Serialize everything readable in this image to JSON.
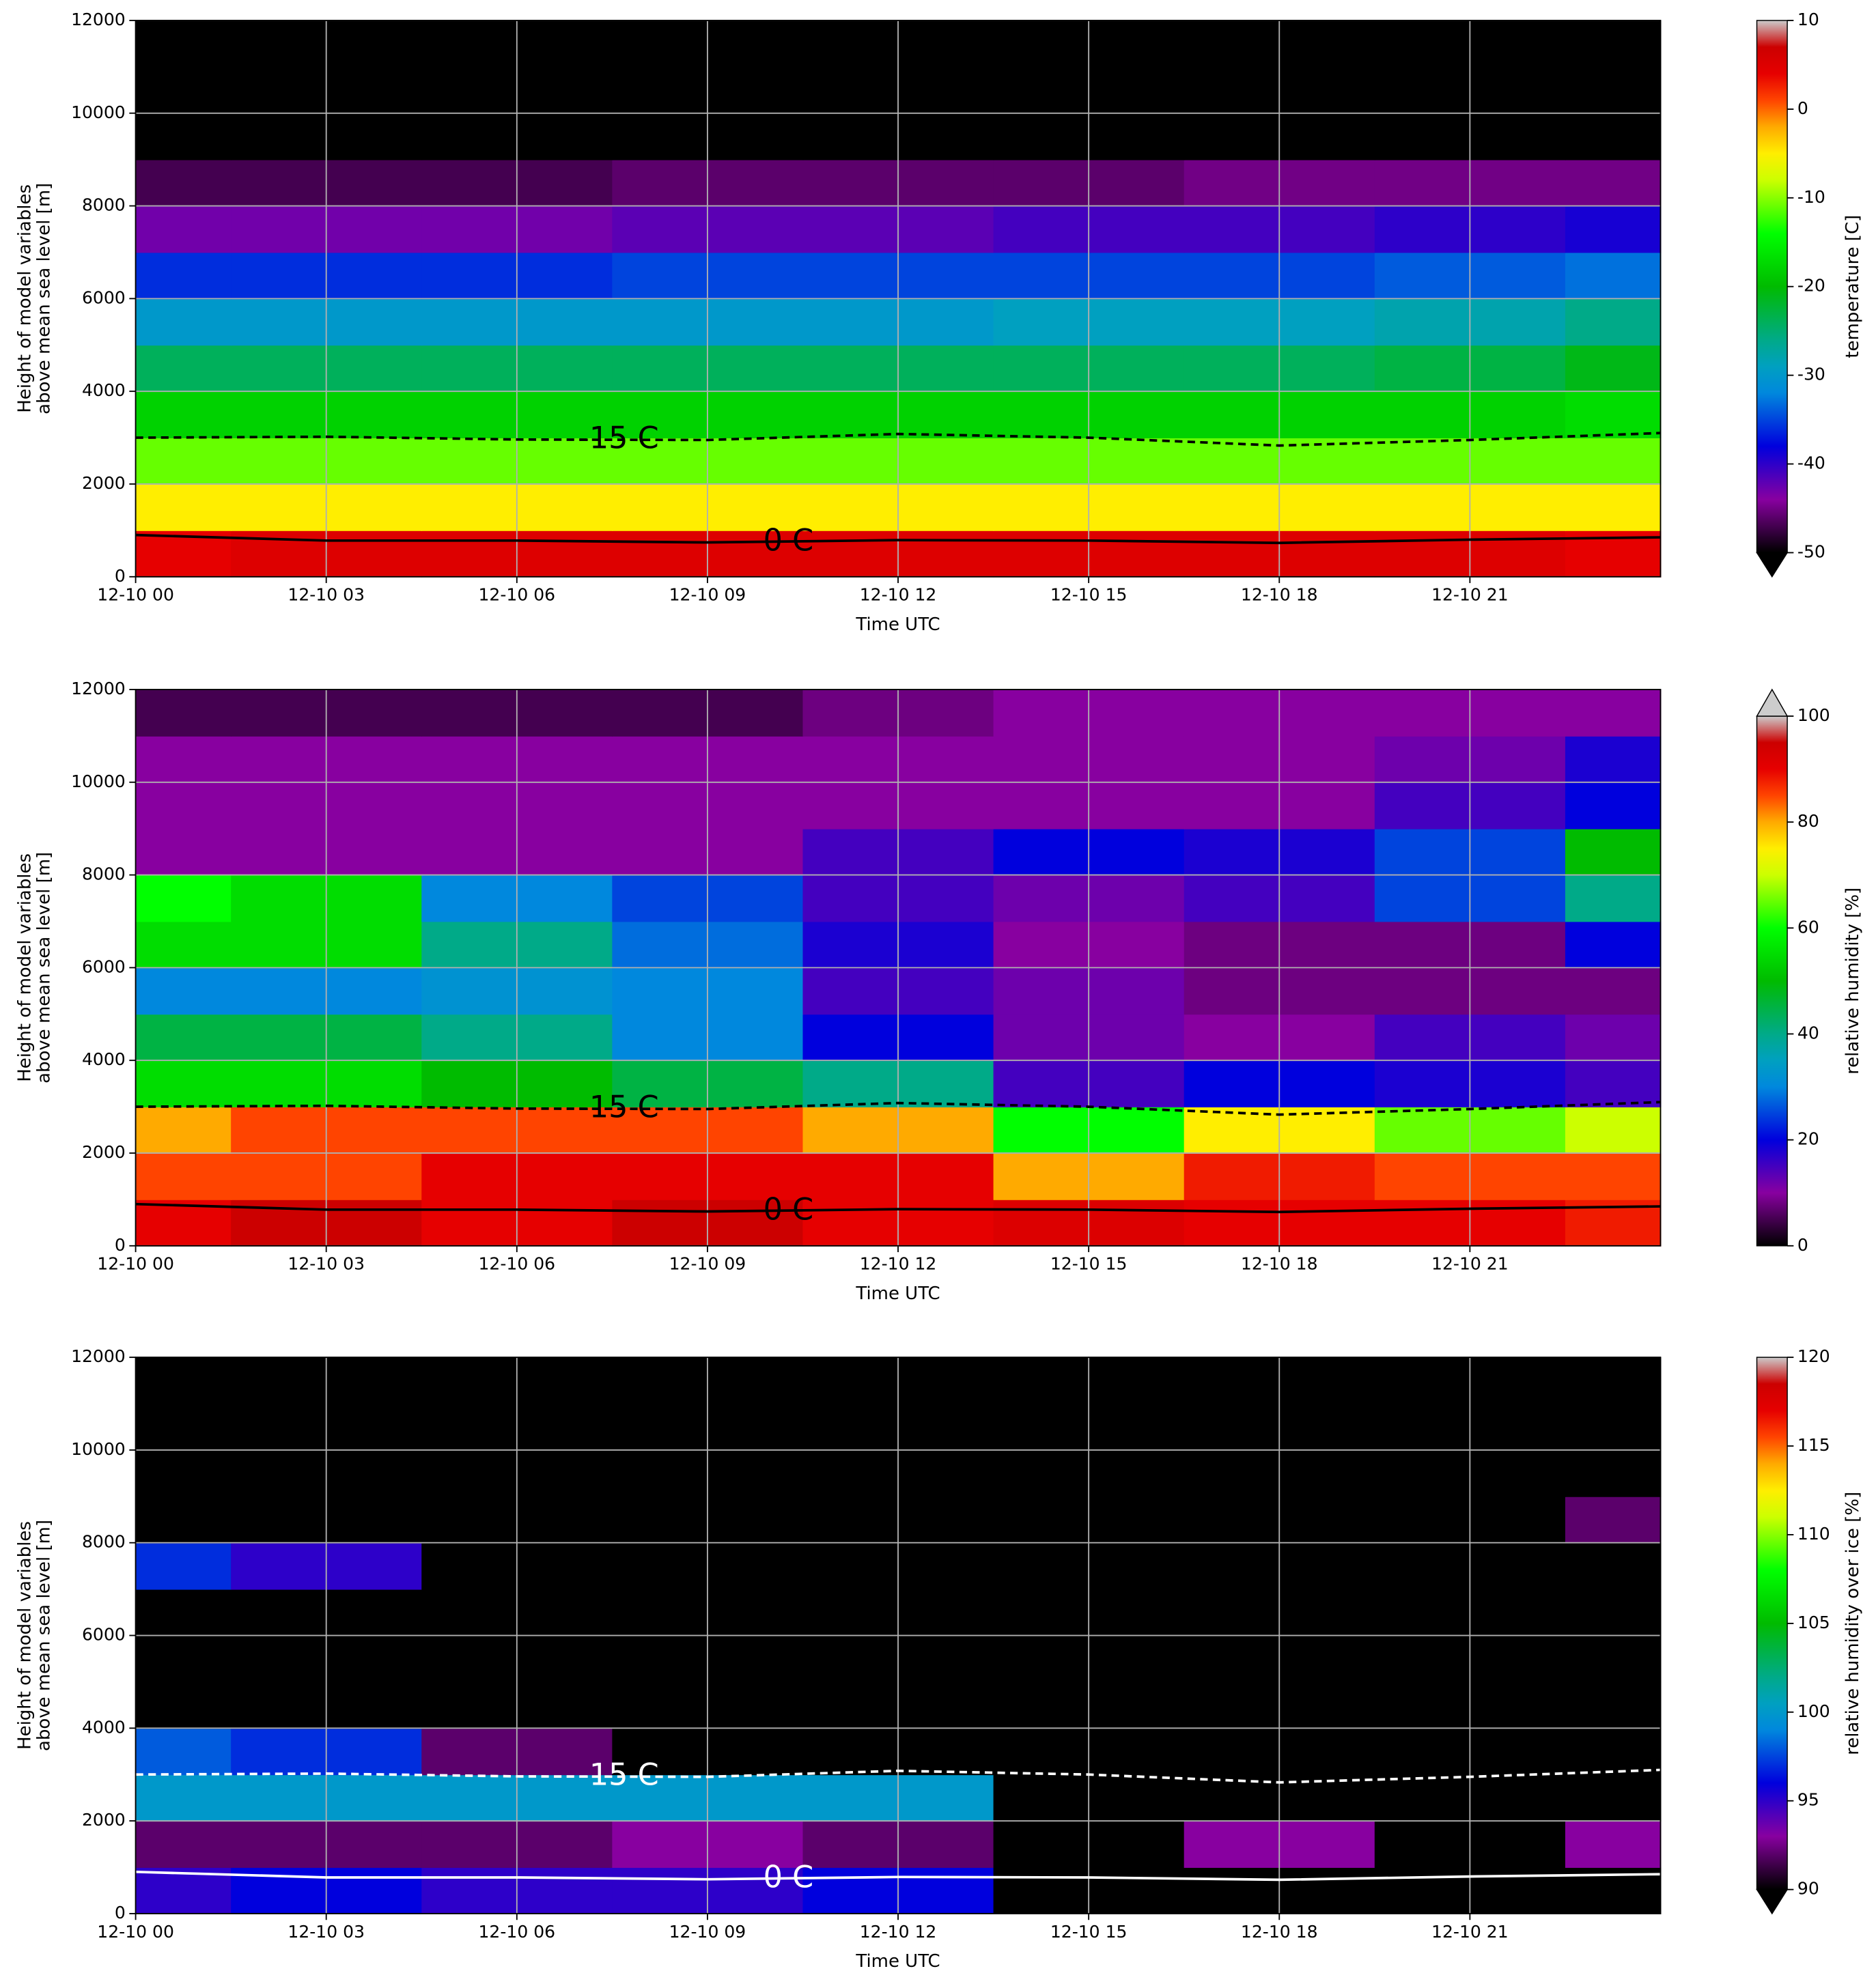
{
  "chart_data": [
    {
      "type": "heatmap",
      "colormap": "nipy_spectral",
      "grid": true,
      "x": [
        0,
        3,
        6,
        9,
        12,
        15,
        18,
        21,
        24
      ],
      "y": [
        500,
        1500,
        2500,
        3500,
        4500,
        5500,
        6500,
        7500,
        8500,
        9500,
        10500,
        11500
      ],
      "z": [
        [
          4,
          5,
          5,
          5,
          5,
          5,
          5,
          5,
          4
        ],
        [
          -5,
          -5,
          -5,
          -5,
          -5,
          -5,
          -5,
          -5,
          -5
        ],
        [
          -11,
          -11,
          -11,
          -11,
          -11,
          -11,
          -11,
          -11,
          -11
        ],
        [
          -18,
          -18,
          -18,
          -18,
          -18,
          -18,
          -18,
          -18,
          -17
        ],
        [
          -24,
          -24,
          -24,
          -24,
          -24,
          -24,
          -24,
          -23,
          -21
        ],
        [
          -30,
          -30,
          -30,
          -30,
          -30,
          -29,
          -29,
          -28,
          -26
        ],
        [
          -36,
          -36,
          -36,
          -35,
          -35,
          -35,
          -35,
          -34,
          -33
        ],
        [
          -43,
          -43,
          -43,
          -42,
          -42,
          -41,
          -41,
          -40,
          -39
        ],
        [
          -47,
          -47,
          -47,
          -46,
          -46,
          -46,
          -45,
          -45,
          -45
        ],
        [
          -52,
          -51,
          -51,
          -52,
          -52,
          -52,
          -52,
          -52,
          -52
        ],
        [
          -55,
          -55,
          -55,
          -55,
          -55,
          -55,
          -55,
          -55,
          -55
        ],
        [
          -56,
          -56,
          -56,
          -56,
          -56,
          -56,
          -56,
          -56,
          -56
        ]
      ],
      "xlim": [
        0,
        24
      ],
      "ylim": [
        0,
        12000
      ],
      "xticks": [
        {
          "value": 0,
          "label": "12-10 00"
        },
        {
          "value": 3,
          "label": "12-10 03"
        },
        {
          "value": 6,
          "label": "12-10 06"
        },
        {
          "value": 9,
          "label": "12-10 09"
        },
        {
          "value": 12,
          "label": "12-10 12"
        },
        {
          "value": 15,
          "label": "12-10 15"
        },
        {
          "value": 18,
          "label": "12-10 18"
        },
        {
          "value": 21,
          "label": "12-10 21"
        }
      ],
      "yticks": [
        0,
        2000,
        4000,
        6000,
        8000,
        10000,
        12000
      ],
      "xlabel": "Time UTC",
      "ylabel": [
        "Height of model variables",
        "above mean sea level [m]"
      ],
      "colorbar": {
        "label": "temperature [C]",
        "lim": [
          -50,
          10
        ],
        "ticks": [
          -50,
          -40,
          -30,
          -20,
          -10,
          0,
          10
        ],
        "extend": "min"
      },
      "contour_color": "#000000",
      "contours": [
        {
          "label": "-15 C",
          "style": "dashed",
          "values": [
            3000,
            3020,
            2960,
            2950,
            3080,
            3000,
            2830,
            2950,
            3100
          ]
        },
        {
          "label": "0 C",
          "style": "solid",
          "values": [
            900,
            780,
            780,
            740,
            790,
            780,
            730,
            800,
            850
          ]
        }
      ]
    },
    {
      "type": "heatmap",
      "colormap": "nipy_spectral",
      "grid": true,
      "x": [
        0,
        3,
        6,
        9,
        12,
        15,
        18,
        21,
        24
      ],
      "y": [
        500,
        1500,
        2500,
        3500,
        4500,
        5500,
        6500,
        7500,
        8500,
        9500,
        10500,
        11500
      ],
      "z": [
        [
          90,
          95,
          90,
          95,
          90,
          92,
          90,
          90,
          88
        ],
        [
          85,
          85,
          90,
          90,
          90,
          80,
          88,
          85,
          85
        ],
        [
          80,
          85,
          85,
          85,
          80,
          60,
          75,
          65,
          70
        ],
        [
          55,
          55,
          50,
          45,
          40,
          15,
          20,
          18,
          15
        ],
        [
          45,
          45,
          40,
          30,
          20,
          12,
          10,
          15,
          12
        ],
        [
          30,
          30,
          32,
          30,
          15,
          12,
          8,
          8,
          8
        ],
        [
          55,
          55,
          40,
          28,
          18,
          10,
          8,
          8,
          20
        ],
        [
          60,
          55,
          30,
          25,
          15,
          12,
          15,
          25,
          40
        ],
        [
          10,
          10,
          10,
          10,
          15,
          20,
          18,
          25,
          50
        ],
        [
          10,
          10,
          10,
          10,
          10,
          10,
          10,
          15,
          20
        ],
        [
          10,
          10,
          10,
          10,
          10,
          10,
          10,
          12,
          18
        ],
        [
          5,
          5,
          5,
          5,
          8,
          10,
          10,
          10,
          10
        ]
      ],
      "xlim": [
        0,
        24
      ],
      "ylim": [
        0,
        12000
      ],
      "xticks": [
        {
          "value": 0,
          "label": "12-10 00"
        },
        {
          "value": 3,
          "label": "12-10 03"
        },
        {
          "value": 6,
          "label": "12-10 06"
        },
        {
          "value": 9,
          "label": "12-10 09"
        },
        {
          "value": 12,
          "label": "12-10 12"
        },
        {
          "value": 15,
          "label": "12-10 15"
        },
        {
          "value": 18,
          "label": "12-10 18"
        },
        {
          "value": 21,
          "label": "12-10 21"
        }
      ],
      "yticks": [
        0,
        2000,
        4000,
        6000,
        8000,
        10000,
        12000
      ],
      "xlabel": "Time UTC",
      "ylabel": [
        "Height of model variables",
        "above mean sea level [m]"
      ],
      "colorbar": {
        "label": "relative humidity [%]",
        "lim": [
          0,
          100
        ],
        "ticks": [
          0,
          20,
          40,
          60,
          80,
          100
        ],
        "extend": "max"
      },
      "contour_color": "#000000",
      "contours": [
        {
          "label": "-15 C",
          "style": "dashed",
          "values": [
            3000,
            3020,
            2960,
            2950,
            3080,
            3000,
            2830,
            2950,
            3100
          ]
        },
        {
          "label": "0 C",
          "style": "solid",
          "values": [
            900,
            780,
            780,
            740,
            790,
            780,
            730,
            800,
            850
          ]
        }
      ]
    },
    {
      "type": "heatmap",
      "colormap": "nipy_spectral",
      "grid": true,
      "x": [
        0,
        3,
        6,
        9,
        12,
        15,
        18,
        21,
        24
      ],
      "y": [
        500,
        1500,
        2500,
        3500,
        4500,
        5500,
        6500,
        7500,
        8500,
        9500,
        10500,
        11500
      ],
      "z": [
        [
          95,
          96,
          95,
          95,
          96,
          88,
          85,
          85,
          85
        ],
        [
          92,
          92,
          92,
          93,
          92,
          85,
          93,
          85,
          93
        ],
        [
          100,
          100,
          100,
          100,
          100,
          85,
          85,
          85,
          85
        ],
        [
          98,
          97,
          92,
          85,
          85,
          85,
          85,
          85,
          85
        ],
        [
          85,
          85,
          85,
          85,
          85,
          85,
          85,
          85,
          85
        ],
        [
          85,
          85,
          85,
          85,
          85,
          85,
          85,
          85,
          85
        ],
        [
          85,
          85,
          85,
          85,
          85,
          85,
          85,
          85,
          85
        ],
        [
          97,
          95,
          85,
          85,
          85,
          85,
          85,
          85,
          85
        ],
        [
          85,
          85,
          85,
          85,
          85,
          85,
          85,
          85,
          92
        ],
        [
          85,
          85,
          85,
          85,
          85,
          85,
          85,
          85,
          85
        ],
        [
          85,
          85,
          85,
          85,
          85,
          85,
          85,
          85,
          85
        ],
        [
          85,
          85,
          85,
          85,
          85,
          85,
          85,
          85,
          85
        ]
      ],
      "xlim": [
        0,
        24
      ],
      "ylim": [
        0,
        12000
      ],
      "xticks": [
        {
          "value": 0,
          "label": "12-10 00"
        },
        {
          "value": 3,
          "label": "12-10 03"
        },
        {
          "value": 6,
          "label": "12-10 06"
        },
        {
          "value": 9,
          "label": "12-10 09"
        },
        {
          "value": 12,
          "label": "12-10 12"
        },
        {
          "value": 15,
          "label": "12-10 15"
        },
        {
          "value": 18,
          "label": "12-10 18"
        },
        {
          "value": 21,
          "label": "12-10 21"
        }
      ],
      "yticks": [
        0,
        2000,
        4000,
        6000,
        8000,
        10000,
        12000
      ],
      "xlabel": "Time UTC",
      "ylabel": [
        "Height of model variables",
        "above mean sea level [m]"
      ],
      "colorbar": {
        "label": "relative humidity over ice [%]",
        "lim": [
          90,
          120
        ],
        "ticks": [
          90,
          95,
          100,
          105,
          110,
          115,
          120
        ],
        "extend": "min"
      },
      "contour_color": "#ffffff",
      "contours": [
        {
          "label": "-15 C",
          "style": "dashed",
          "values": [
            3000,
            3020,
            2960,
            2950,
            3080,
            3000,
            2830,
            2950,
            3100
          ]
        },
        {
          "label": "0 C",
          "style": "solid",
          "values": [
            900,
            780,
            780,
            740,
            790,
            780,
            730,
            800,
            850
          ]
        }
      ]
    }
  ]
}
